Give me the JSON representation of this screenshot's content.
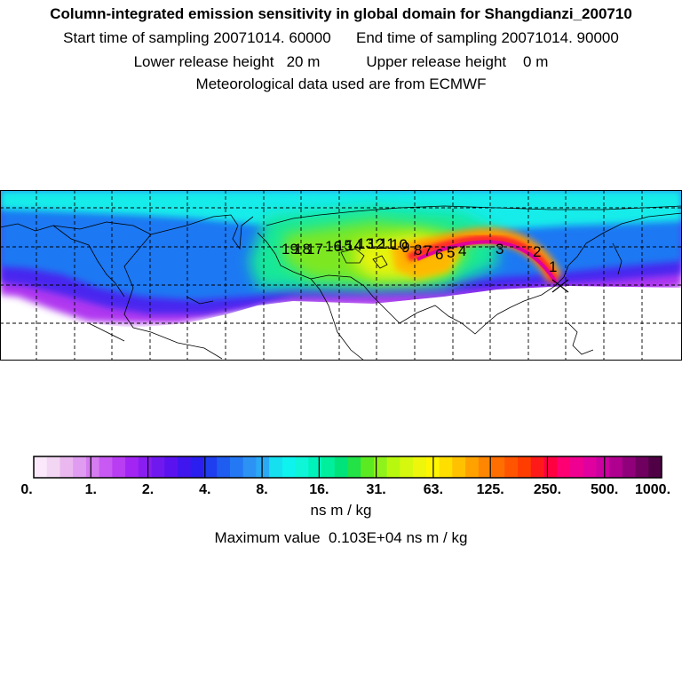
{
  "header": {
    "title": "Column-integrated emission sensitivity in global domain for Shangdianzi_200710",
    "sampling": "Start time of sampling 20071014. 60000      End time of sampling 20071014. 90000",
    "heights": "Lower release height   20 m           Upper release height    0 m",
    "met": "Meteorological data used are from ECMWF"
  },
  "map": {
    "trajectory_labels": [
      "19",
      "18",
      "17",
      "16",
      "15",
      "14",
      "13",
      "12",
      "11",
      "10",
      "9",
      "8",
      "7",
      "6",
      "5",
      "4",
      "3",
      "2",
      "1"
    ],
    "release_marker": "x-marker"
  },
  "colorbar": {
    "tick_labels": [
      "0.",
      "1.",
      "2.",
      "4.",
      "8.",
      "16.",
      "31.",
      "63.",
      "125.",
      "250.",
      "500.",
      "1000."
    ],
    "colors": [
      "#fbe9fb",
      "#f3d6f3",
      "#eab8ef",
      "#e09cf0",
      "#d57cf0",
      "#c85af3",
      "#b83df3",
      "#a225f3",
      "#8a1ef0",
      "#7019ef",
      "#5a13ef",
      "#4016ef",
      "#2a1fef",
      "#1f3eef",
      "#1f5cf0",
      "#2578f3",
      "#2c93f5",
      "#2aaaf5",
      "#16dff0",
      "#0ff3ee",
      "#0ff5d8",
      "#00f2bb",
      "#00ef9c",
      "#00e27a",
      "#22e247",
      "#5bea22",
      "#90f21b",
      "#b8f80f",
      "#d6f80e",
      "#eef70b",
      "#fff600",
      "#ffde00",
      "#ffc100",
      "#ffa200",
      "#ff8600",
      "#ff6e00",
      "#ff5500",
      "#ff3d00",
      "#ff1a1a",
      "#ff0040",
      "#ff0073",
      "#f00090",
      "#e000a0",
      "#cc00a0",
      "#b00090",
      "#90007a",
      "#70005f",
      "#500045"
    ],
    "units": "ns m / kg",
    "max_label": "Maximum value  0.103E+04 ns m / kg"
  }
}
